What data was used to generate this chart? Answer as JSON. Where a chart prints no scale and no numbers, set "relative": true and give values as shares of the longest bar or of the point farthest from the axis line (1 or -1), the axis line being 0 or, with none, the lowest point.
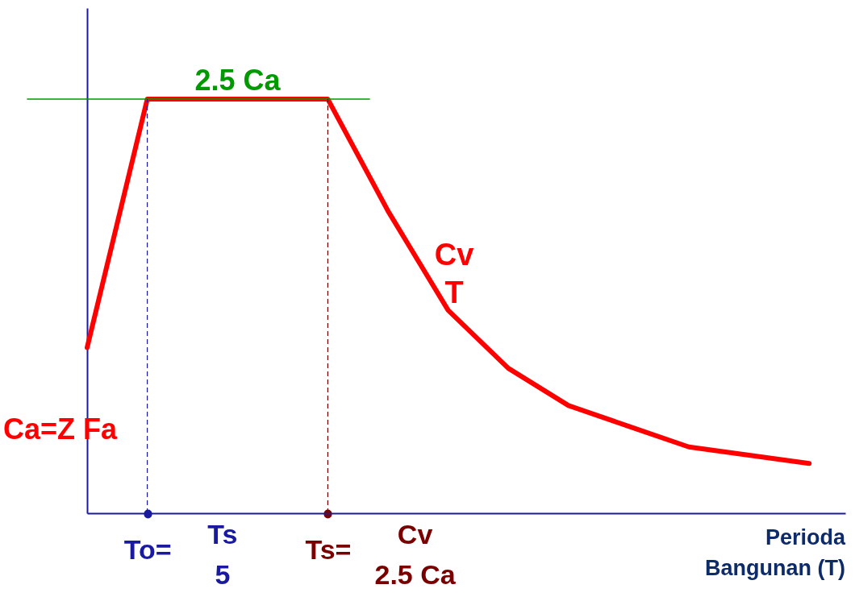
{
  "chart_data": {
    "type": "line",
    "relative": true,
    "xlabel": "Perioda Bangunan  (T)",
    "categories": [
      null,
      "To=",
      null,
      null,
      "Ts=",
      null,
      null,
      null,
      null,
      null,
      null,
      null,
      null
    ],
    "series": [
      {
        "color": "#ff0000",
        "values": [
          0.4,
          1,
          1,
          1,
          1,
          0.73,
          0.49,
          0.35,
          0.26,
          0.21,
          0.16,
          0.14,
          0.12
        ]
      }
    ],
    "ref_lines": [
      {
        "axis": "y",
        "value": 1,
        "label": "2.5 Ca",
        "color": "#009900"
      },
      {
        "axis": "x",
        "value": "To=",
        "label": null,
        "color": "#1a1aa0",
        "line_style": "dashed"
      },
      {
        "axis": "x",
        "value": "Ts=",
        "label": null,
        "color": "#7a0000",
        "line_style": "dashed"
      }
    ],
    "annotations": [
      "Cv",
      "T",
      "Ca=Z Fa",
      "Ts",
      "5",
      "Cv",
      "2.5 Ca"
    ],
    "line_style": "solid"
  }
}
